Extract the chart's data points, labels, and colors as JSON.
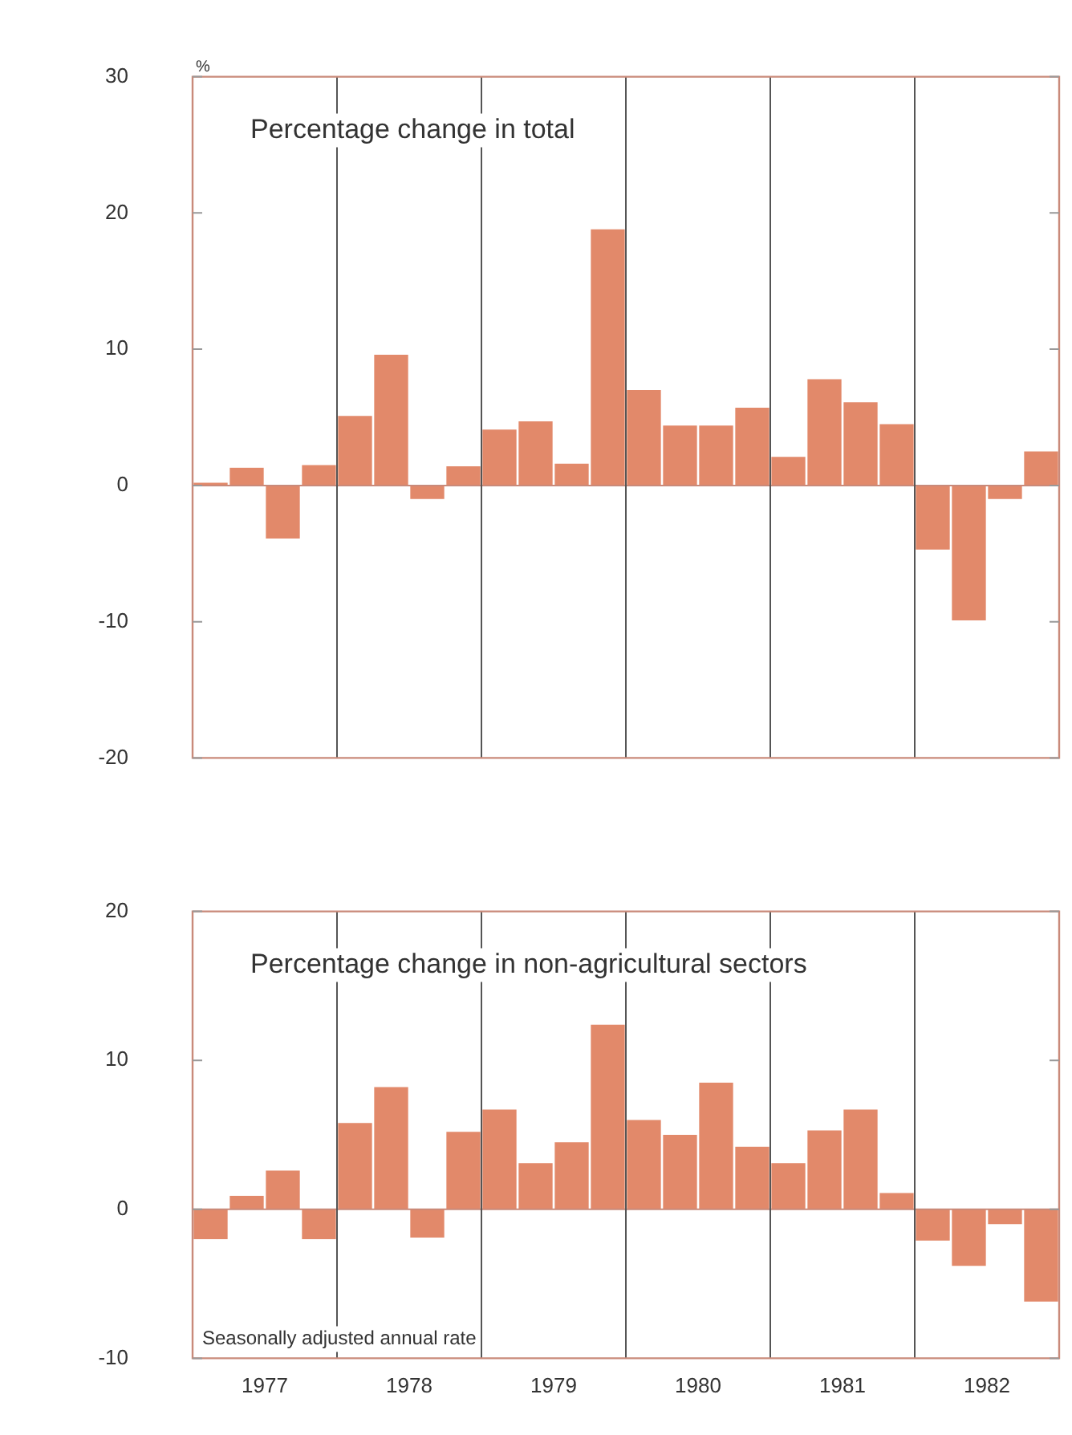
{
  "chart_data": [
    {
      "type": "bar",
      "title": "Percentage change in total",
      "ylabel": "%",
      "x": [
        1977.125,
        1977.375,
        1977.625,
        1977.875,
        1978.125,
        1978.375,
        1978.625,
        1978.875,
        1979.125,
        1979.375,
        1979.625,
        1979.875,
        1980.125,
        1980.375,
        1980.625,
        1980.875,
        1981.125,
        1981.375,
        1981.625,
        1981.875,
        1982.125,
        1982.375,
        1982.625,
        1982.875
      ],
      "values": [
        0.2,
        1.3,
        -3.9,
        1.5,
        5.1,
        9.6,
        -1.0,
        1.4,
        4.1,
        4.7,
        1.6,
        18.8,
        7.0,
        4.4,
        4.4,
        5.7,
        2.1,
        7.8,
        6.1,
        4.5,
        -4.7,
        -9.9,
        -1.0,
        2.5
      ],
      "color": "#e2896a",
      "xlim": [
        1977,
        1983
      ],
      "ylim": [
        -20,
        30
      ],
      "yticks": [
        -20,
        -10,
        0,
        10,
        20,
        30
      ],
      "ref_lines": [
        {
          "axis": "y",
          "value": 0,
          "color": "#c98a7a"
        },
        {
          "axis": "x",
          "value": 1978
        },
        {
          "axis": "x",
          "value": 1979
        },
        {
          "axis": "x",
          "value": 1980
        },
        {
          "axis": "x",
          "value": 1981
        },
        {
          "axis": "x",
          "value": 1982
        }
      ],
      "tick_labels": "y",
      "grid": false,
      "legend": false
    },
    {
      "type": "bar",
      "title": "Percentage change in non-agricultural sectors",
      "x": [
        1977.125,
        1977.375,
        1977.625,
        1977.875,
        1978.125,
        1978.375,
        1978.625,
        1978.875,
        1979.125,
        1979.375,
        1979.625,
        1979.875,
        1980.125,
        1980.375,
        1980.625,
        1980.875,
        1981.125,
        1981.375,
        1981.625,
        1981.875,
        1982.125,
        1982.375,
        1982.625,
        1982.875
      ],
      "values": [
        -2.0,
        0.9,
        2.6,
        -2.0,
        5.8,
        8.2,
        -1.9,
        5.2,
        6.7,
        3.1,
        4.5,
        12.4,
        6.0,
        5.0,
        8.5,
        4.2,
        3.1,
        5.3,
        6.7,
        1.1,
        -2.1,
        -3.8,
        -1.0,
        -6.2
      ],
      "color": "#e2896a",
      "xlim": [
        1977,
        1983
      ],
      "xticks": [
        {
          "value": 1977.5,
          "label": "1977"
        },
        {
          "value": 1978.5,
          "label": "1978"
        },
        {
          "value": 1979.5,
          "label": "1979"
        },
        {
          "value": 1980.5,
          "label": "1980"
        },
        {
          "value": 1981.5,
          "label": "1981"
        },
        {
          "value": 1982.5,
          "label": "1982"
        }
      ],
      "ylim": [
        -10,
        20
      ],
      "yticks": [
        -10,
        0,
        10,
        20
      ],
      "ref_lines": [
        {
          "axis": "y",
          "value": 0,
          "color": "#c98a7a"
        },
        {
          "axis": "x",
          "value": 1978
        },
        {
          "axis": "x",
          "value": 1979
        },
        {
          "axis": "x",
          "value": 1980
        },
        {
          "axis": "x",
          "value": 1981
        },
        {
          "axis": "x",
          "value": 1982
        }
      ],
      "annotations": [
        "Seasonally adjusted annual rate"
      ],
      "grid": false,
      "legend": false
    }
  ]
}
